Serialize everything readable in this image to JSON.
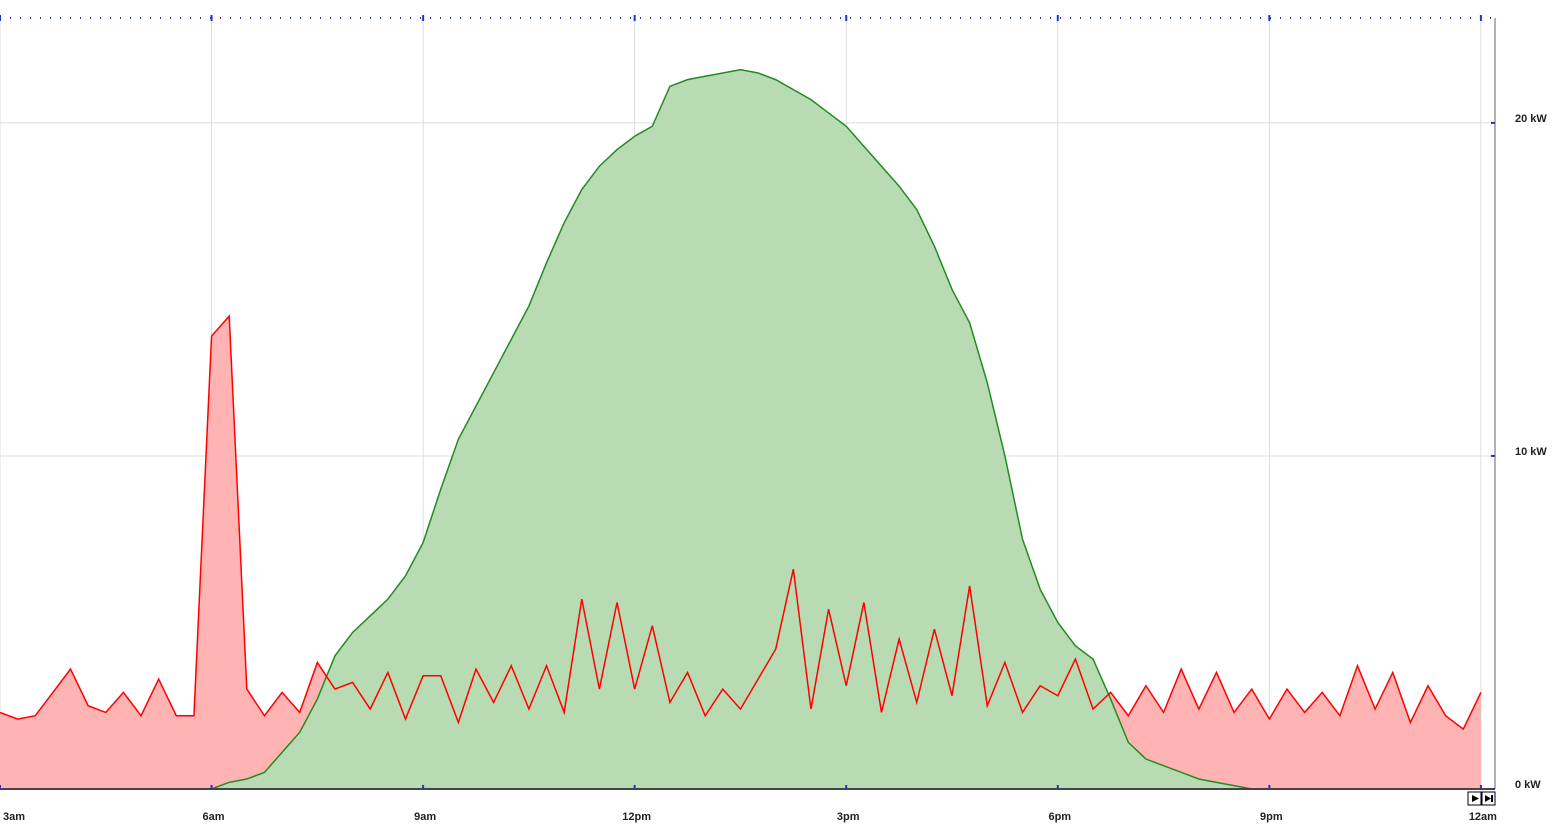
{
  "chart_data": {
    "type": "area",
    "x": [
      3,
      3.25,
      3.5,
      3.75,
      4,
      4.25,
      4.5,
      4.75,
      5,
      5.25,
      5.5,
      5.75,
      6,
      6.25,
      6.5,
      6.75,
      7,
      7.25,
      7.5,
      7.75,
      8,
      8.25,
      8.5,
      8.75,
      9,
      9.25,
      9.5,
      9.75,
      10,
      10.25,
      10.5,
      10.75,
      11,
      11.25,
      11.5,
      11.75,
      12,
      12.25,
      12.5,
      12.75,
      13,
      13.25,
      13.5,
      13.75,
      14,
      14.25,
      14.5,
      14.75,
      15,
      15.25,
      15.5,
      15.75,
      16,
      16.25,
      16.5,
      16.75,
      17,
      17.25,
      17.5,
      17.75,
      18,
      18.25,
      18.5,
      18.75,
      19,
      19.25,
      19.5,
      19.75,
      20,
      20.25,
      20.5,
      20.75,
      21,
      21.25,
      21.5,
      21.75,
      22,
      22.25,
      22.5,
      22.75,
      23,
      23.25,
      23.5,
      23.75,
      24
    ],
    "series": [
      {
        "color": "#ff0000",
        "fill": "#ffb3b3",
        "values": [
          2.3,
          2.1,
          2.2,
          2.9,
          3.6,
          2.5,
          2.3,
          2.9,
          2.2,
          3.3,
          2.2,
          2.2,
          13.6,
          14.2,
          3.0,
          2.2,
          2.9,
          2.3,
          3.8,
          3.0,
          3.2,
          2.4,
          3.5,
          2.1,
          3.4,
          3.4,
          2.0,
          3.6,
          2.6,
          3.7,
          2.4,
          3.7,
          2.3,
          5.7,
          3.0,
          5.6,
          3.0,
          4.9,
          2.6,
          3.5,
          2.2,
          3.0,
          2.4,
          3.3,
          4.2,
          6.6,
          2.4,
          5.4,
          3.1,
          5.6,
          2.3,
          4.5,
          2.6,
          4.8,
          2.8,
          6.1,
          2.5,
          3.8,
          2.3,
          3.1,
          2.8,
          3.9,
          2.4,
          2.9,
          2.2,
          3.1,
          2.3,
          3.6,
          2.4,
          3.5,
          2.3,
          3.0,
          2.1,
          3.0,
          2.3,
          2.9,
          2.2,
          3.7,
          2.4,
          3.5,
          2.0,
          3.1,
          2.2,
          1.8,
          2.9
        ]
      },
      {
        "color": "#228b22",
        "fill": "#b9dbb3",
        "values": [
          0,
          0,
          0,
          0,
          0,
          0,
          0,
          0,
          0,
          0,
          0,
          0,
          0,
          0.2,
          0.3,
          0.5,
          1.1,
          1.7,
          2.7,
          4.0,
          4.7,
          5.2,
          5.7,
          6.4,
          7.4,
          9.0,
          10.5,
          11.5,
          12.5,
          13.5,
          14.5,
          15.8,
          17.0,
          18.0,
          18.7,
          19.2,
          19.6,
          19.9,
          21.1,
          21.3,
          21.4,
          21.5,
          21.6,
          21.5,
          21.3,
          21.0,
          20.7,
          20.3,
          19.9,
          19.3,
          18.7,
          18.1,
          17.4,
          16.3,
          15.0,
          14.0,
          12.2,
          10.0,
          7.5,
          6.0,
          5.0,
          4.3,
          3.9,
          2.7,
          1.4,
          0.9,
          0.7,
          0.5,
          0.3,
          0.2,
          0.1,
          0,
          0,
          0,
          0,
          0,
          0,
          0,
          0,
          0,
          0,
          0,
          0,
          0,
          0
        ]
      }
    ],
    "xlim": [
      3,
      24.2
    ],
    "xticks": [
      {
        "value": 3,
        "label": "3am"
      },
      {
        "value": 6,
        "label": "6am"
      },
      {
        "value": 9,
        "label": "9am"
      },
      {
        "value": 12,
        "label": "12pm"
      },
      {
        "value": 15,
        "label": "3pm"
      },
      {
        "value": 18,
        "label": "6pm"
      },
      {
        "value": 21,
        "label": "9pm"
      },
      {
        "value": 24,
        "label": "12am"
      }
    ],
    "ylim": [
      0,
      23
    ],
    "yticks": [
      {
        "value": 0,
        "label": "0 kW"
      },
      {
        "value": 10,
        "label": "10 kW"
      },
      {
        "value": 20,
        "label": "20 kW"
      }
    ],
    "grid": true
  }
}
